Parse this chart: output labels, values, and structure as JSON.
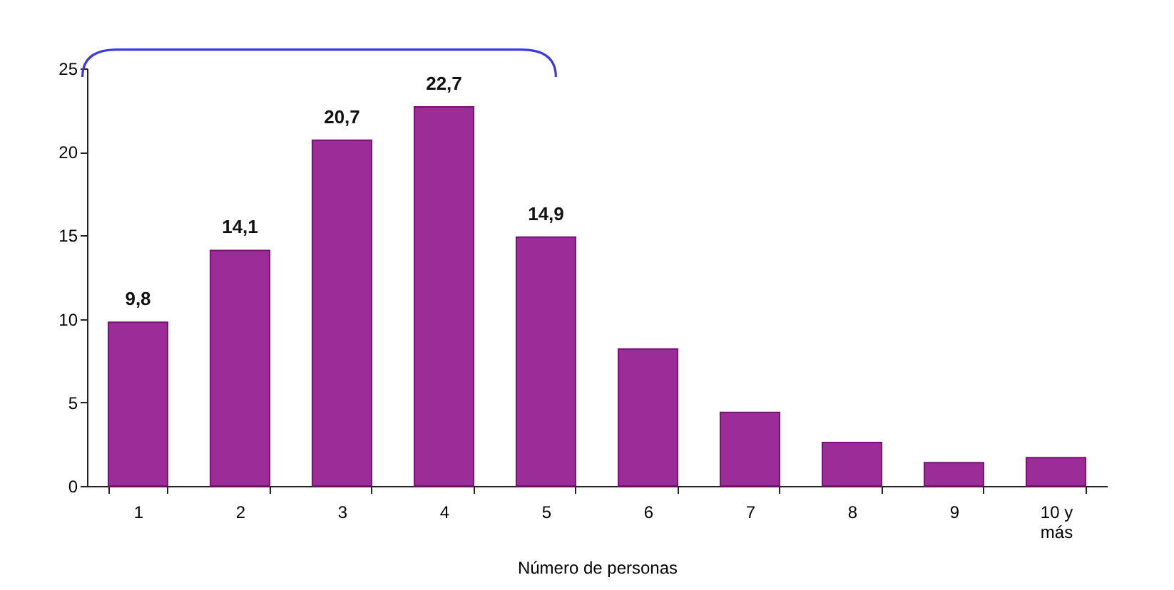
{
  "chart_data": {
    "type": "bar",
    "xlabel": "Número de personas",
    "categories": [
      "1",
      "2",
      "3",
      "4",
      "5",
      "6",
      "7",
      "8",
      "9",
      "10 y más"
    ],
    "values": [
      9.8,
      14.1,
      20.7,
      22.7,
      14.9,
      8.2,
      4.4,
      2.6,
      1.4,
      1.7
    ],
    "value_labels": [
      "9,8",
      "14,1",
      "20,7",
      "22,7",
      "14,9",
      null,
      null,
      null,
      null,
      null
    ],
    "color": "#9c2c98",
    "ylim": [
      0,
      25
    ],
    "yticks": [
      0,
      5,
      10,
      15,
      20,
      25
    ],
    "grid": false
  }
}
